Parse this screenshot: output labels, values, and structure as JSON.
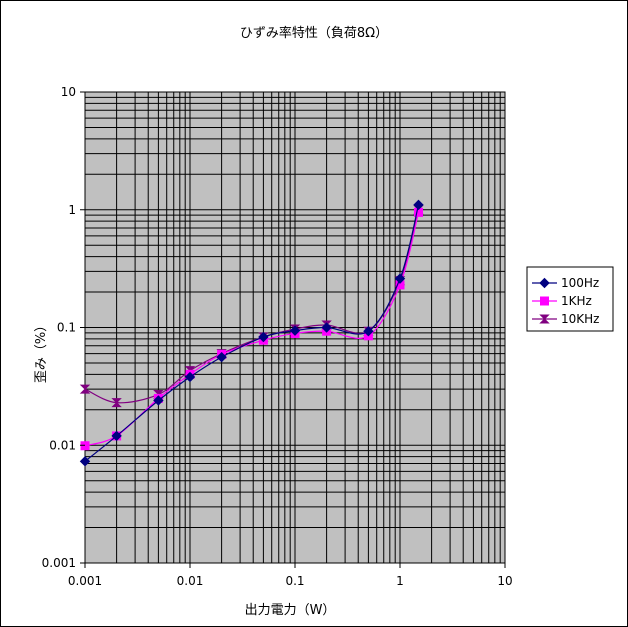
{
  "chart_data": {
    "type": "line",
    "title": "ひずみ率特性（負荷8Ω）",
    "xlabel": "出力電力（W）",
    "ylabel": "歪み（%）",
    "xscale": "log",
    "yscale": "log",
    "xlim": [
      0.001,
      10
    ],
    "ylim": [
      0.001,
      10
    ],
    "xticks": [
      "0.001",
      "0.01",
      "0.1",
      "1",
      "10"
    ],
    "yticks": [
      "0.001",
      "0.01",
      "0.1",
      "1",
      "10"
    ],
    "grid": true,
    "legend_position": "right",
    "plot_background": "#c0c0c0",
    "series": [
      {
        "name": "100Hz",
        "color": "#000080",
        "marker": "diamond",
        "x": [
          0.001,
          0.002,
          0.005,
          0.01,
          0.02,
          0.05,
          0.1,
          0.2,
          0.5,
          1,
          1.5
        ],
        "y": [
          0.0073,
          0.012,
          0.024,
          0.038,
          0.056,
          0.083,
          0.094,
          0.1,
          0.093,
          0.26,
          1.1
        ]
      },
      {
        "name": "1KHz",
        "color": "#ff00ff",
        "marker": "square",
        "x": [
          0.001,
          0.002,
          0.005,
          0.01,
          0.02,
          0.05,
          0.1,
          0.2,
          0.5,
          1,
          1.5
        ],
        "y": [
          0.0099,
          0.012,
          0.025,
          0.04,
          0.059,
          0.078,
          0.089,
          0.093,
          0.085,
          0.23,
          0.95
        ]
      },
      {
        "name": "10KHz",
        "color": "#800080",
        "marker": "hourglass",
        "x": [
          0.001,
          0.002,
          0.005,
          0.01,
          0.02,
          0.05,
          0.1,
          0.2,
          0.5,
          1,
          1.5
        ],
        "y": [
          0.03,
          0.023,
          0.027,
          0.043,
          0.06,
          0.083,
          0.097,
          0.105,
          0.093,
          0.25,
          1.0
        ]
      }
    ]
  }
}
